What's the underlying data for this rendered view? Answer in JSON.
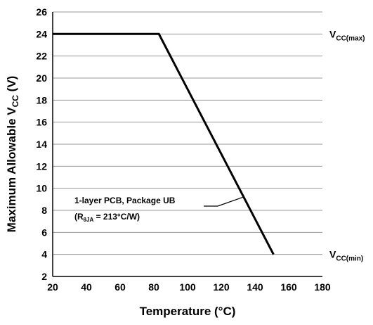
{
  "chart_data": {
    "type": "line",
    "xlabel": "Temperature (°C)",
    "ylabel": {
      "main": "Maximum Allowable V",
      "sub": "CC",
      "suffix": " (V)"
    },
    "xlim": [
      20,
      180
    ],
    "ylim": [
      2,
      26
    ],
    "x_ticks": [
      20,
      40,
      60,
      80,
      100,
      120,
      140,
      160,
      180
    ],
    "y_ticks": [
      2,
      4,
      6,
      8,
      10,
      12,
      14,
      16,
      18,
      20,
      22,
      24,
      26
    ],
    "grid": "horizontal",
    "series": [
      {
        "x": [
          20,
          83,
          151
        ],
        "y": [
          24,
          24,
          4
        ]
      }
    ],
    "reference_labels": [
      {
        "at_y": 24,
        "main": "V",
        "sub": "CC(max)"
      },
      {
        "at_y": 4,
        "main": "V",
        "sub": "CC(min)"
      }
    ],
    "annotation": {
      "line1": "1-layer PCB, Package UB",
      "line2_prefix": "(R",
      "line2_sub": "θJA",
      "line2_suffix": " = 213°C/W)",
      "points_to": {
        "x": 133,
        "y": 9.2
      }
    }
  }
}
